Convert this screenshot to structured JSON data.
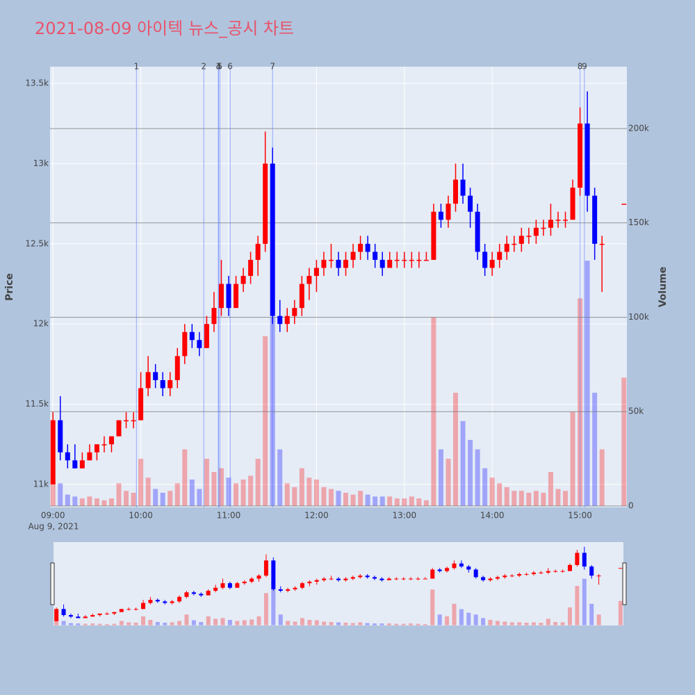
{
  "chart_data": {
    "type": "candlestick",
    "title": "2021-08-09 아이텍 뉴스_공시 차트",
    "x": [
      "09:00",
      "09:05",
      "09:10",
      "09:15",
      "09:20",
      "09:25",
      "09:30",
      "09:35",
      "09:40",
      "09:45",
      "09:50",
      "09:55",
      "10:00",
      "10:05",
      "10:10",
      "10:15",
      "10:20",
      "10:25",
      "10:30",
      "10:35",
      "10:40",
      "10:45",
      "10:50",
      "10:55",
      "11:00",
      "11:05",
      "11:10",
      "11:15",
      "11:20",
      "11:25",
      "11:30",
      "11:35",
      "11:40",
      "11:45",
      "11:50",
      "11:55",
      "12:00",
      "12:05",
      "12:10",
      "12:15",
      "12:20",
      "12:25",
      "12:30",
      "12:35",
      "12:40",
      "12:45",
      "12:50",
      "12:55",
      "13:00",
      "13:05",
      "13:10",
      "13:15",
      "13:20",
      "13:25",
      "13:30",
      "13:35",
      "13:40",
      "13:45",
      "13:50",
      "13:55",
      "14:00",
      "14:05",
      "14:10",
      "14:15",
      "14:20",
      "14:25",
      "14:30",
      "14:35",
      "14:40",
      "14:45",
      "14:50",
      "14:55",
      "15:00",
      "15:05",
      "15:10",
      "15:15",
      "15:30"
    ],
    "open": [
      11000,
      11400,
      11200,
      11150,
      11100,
      11150,
      11200,
      11250,
      11250,
      11300,
      11400,
      11400,
      11400,
      11600,
      11700,
      11650,
      11600,
      11650,
      11800,
      11950,
      11900,
      11850,
      12000,
      12100,
      12250,
      12100,
      12250,
      12300,
      12400,
      12500,
      13000,
      12050,
      12000,
      12050,
      12100,
      12250,
      12300,
      12350,
      12400,
      12400,
      12350,
      12400,
      12450,
      12500,
      12450,
      12400,
      12350,
      12400,
      12400,
      12400,
      12400,
      12400,
      12400,
      12700,
      12650,
      12750,
      12900,
      12800,
      12700,
      12450,
      12350,
      12400,
      12450,
      12500,
      12500,
      12550,
      12550,
      12600,
      12600,
      12650,
      12650,
      12650,
      12850,
      13250,
      12800,
      12500,
      12750
    ],
    "high": [
      11450,
      11550,
      11250,
      11250,
      11200,
      11250,
      11250,
      11300,
      11300,
      11400,
      11450,
      11450,
      11700,
      11800,
      11750,
      11700,
      11700,
      11850,
      12000,
      12000,
      11950,
      12050,
      12200,
      12400,
      12300,
      12300,
      12350,
      12450,
      12550,
      13200,
      13100,
      12150,
      12100,
      12150,
      12300,
      12350,
      12400,
      12450,
      12500,
      12450,
      12450,
      12500,
      12550,
      12550,
      12500,
      12450,
      12450,
      12450,
      12450,
      12450,
      12450,
      12450,
      12750,
      12750,
      12800,
      13000,
      13000,
      12850,
      12750,
      12500,
      12450,
      12500,
      12550,
      12550,
      12600,
      12600,
      12650,
      12650,
      12750,
      12700,
      12700,
      12900,
      13350,
      13450,
      12850,
      12550,
      12750
    ],
    "low": [
      11000,
      11150,
      11100,
      11100,
      11100,
      11150,
      11150,
      11200,
      11200,
      11300,
      11350,
      11350,
      11400,
      11550,
      11600,
      11550,
      11550,
      11600,
      11750,
      11850,
      11800,
      11850,
      11950,
      12050,
      12050,
      12100,
      12200,
      12250,
      12300,
      12450,
      12000,
      11950,
      11950,
      12000,
      12050,
      12150,
      12200,
      12300,
      12350,
      12300,
      12300,
      12350,
      12400,
      12400,
      12350,
      12300,
      12350,
      12350,
      12350,
      12350,
      12350,
      12400,
      12400,
      12600,
      12600,
      12700,
      12750,
      12600,
      12400,
      12300,
      12300,
      12350,
      12400,
      12450,
      12450,
      12500,
      12500,
      12550,
      12550,
      12600,
      12600,
      12650,
      12800,
      12700,
      12400,
      12200,
      12750
    ],
    "close": [
      11400,
      11200,
      11150,
      11100,
      11150,
      11200,
      11250,
      11250,
      11300,
      11400,
      11400,
      11400,
      11600,
      11700,
      11650,
      11600,
      11650,
      11800,
      11950,
      11900,
      11850,
      12000,
      12100,
      12250,
      12100,
      12250,
      12300,
      12400,
      12500,
      13000,
      12050,
      12000,
      12050,
      12100,
      12250,
      12300,
      12350,
      12400,
      12400,
      12350,
      12400,
      12450,
      12500,
      12450,
      12400,
      12350,
      12400,
      12400,
      12400,
      12400,
      12400,
      12400,
      12700,
      12650,
      12750,
      12900,
      12800,
      12700,
      12450,
      12350,
      12400,
      12450,
      12500,
      12500,
      12550,
      12550,
      12600,
      12600,
      12650,
      12650,
      12650,
      12850,
      13250,
      12800,
      12500,
      12500,
      12750
    ],
    "volume": [
      15000,
      12000,
      6000,
      5000,
      4000,
      5000,
      4000,
      3000,
      4000,
      12000,
      8000,
      7000,
      25000,
      15000,
      9000,
      7000,
      8000,
      12000,
      30000,
      14000,
      9000,
      25000,
      18000,
      20000,
      15000,
      12000,
      14000,
      16000,
      25000,
      90000,
      100000,
      30000,
      12000,
      10000,
      20000,
      15000,
      14000,
      10000,
      9000,
      8000,
      7000,
      6000,
      8000,
      6000,
      5000,
      5000,
      5000,
      4000,
      4000,
      5000,
      4000,
      3000,
      100000,
      30000,
      25000,
      60000,
      45000,
      35000,
      30000,
      20000,
      15000,
      12000,
      10000,
      8000,
      8000,
      7000,
      8000,
      7000,
      18000,
      9000,
      8000,
      50000,
      110000,
      130000,
      60000,
      30000,
      68000
    ],
    "increasing_color": "#ff0000",
    "decreasing_color": "#0000ff",
    "xlim": [
      "08:58",
      "15:32"
    ],
    "xticks": [
      "09:00",
      "10:00",
      "11:00",
      "12:00",
      "13:00",
      "14:00",
      "15:00"
    ],
    "x_sublabel": "Aug 9, 2021",
    "ylim": [
      10857,
      13604
    ],
    "yticks": [
      {
        "value": 11000,
        "label": "11k"
      },
      {
        "value": 11500,
        "label": "11.5k"
      },
      {
        "value": 12000,
        "label": "12k"
      },
      {
        "value": 12500,
        "label": "12.5k"
      },
      {
        "value": 13000,
        "label": "13k"
      },
      {
        "value": 13500,
        "label": "13.5k"
      }
    ],
    "y2lim": [
      -737,
      232781
    ],
    "y2ticks": [
      0,
      {
        "value": 50000,
        "label": "50k"
      },
      {
        "value": 100000,
        "label": "100k"
      },
      {
        "value": 150000,
        "label": "150k"
      },
      {
        "value": 200000,
        "label": "200k"
      }
    ],
    "y_title": "Price",
    "y2_title": "Volume",
    "news": [
      {
        "label": "1",
        "x": "09:57"
      },
      {
        "label": "2",
        "x": "10:43"
      },
      {
        "label": "3",
        "x": "10:53"
      },
      {
        "label": "4",
        "x": "10:53"
      },
      {
        "label": "5",
        "x": "10:54"
      },
      {
        "label": "6",
        "x": "11:01"
      },
      {
        "label": "7",
        "x": "11:30"
      },
      {
        "label": "8",
        "x": "15:00"
      },
      {
        "label": "9",
        "x": "15:03"
      }
    ],
    "rangeslider": true
  }
}
